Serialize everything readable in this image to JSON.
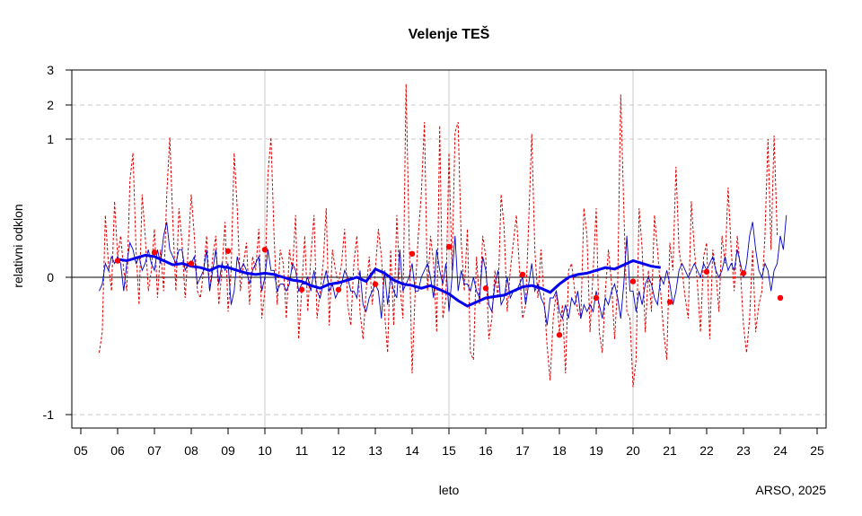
{
  "chart_data": {
    "type": "line",
    "title": "Velenje TEŠ",
    "xlabel": "leto",
    "ylabel": "relativni odklon",
    "credit": "ARSO, 2025",
    "x_ticks": [
      "05",
      "06",
      "07",
      "08",
      "09",
      "10",
      "11",
      "12",
      "13",
      "14",
      "15",
      "16",
      "17",
      "18",
      "19",
      "20",
      "21",
      "22",
      "23",
      "24",
      "25"
    ],
    "x_range": [
      2005,
      2025
    ],
    "y_ticks": [
      {
        "label": "-1",
        "value": -1
      },
      {
        "label": "0",
        "value": 0
      },
      {
        "label": "1",
        "value": 1
      },
      {
        "label": "2",
        "value": 2
      },
      {
        "label": "3",
        "value": 3
      }
    ],
    "y_scale": "asinh-like (nonlinear: 0 at centre, 1, 2, 3 compressed upward)",
    "grid": true,
    "colors": {
      "monthly": "#e00000",
      "seasonal": "#0000c8",
      "smooth": "#0000ee",
      "annual": "#ff0000",
      "grid": "#c8c8c8"
    },
    "series": [
      {
        "name": "",
        "style": "dashed red",
        "x_start": 2005.5,
        "x_step": 0.08333,
        "values": [
          -0.55,
          -0.4,
          0.45,
          0.1,
          -0.1,
          0.55,
          0.15,
          0.3,
          0.05,
          -0.1,
          0.7,
          0.9,
          0.2,
          -0.2,
          0.6,
          0.3,
          -0.1,
          0.05,
          0.35,
          -0.15,
          0.2,
          -0.1,
          0.6,
          1.05,
          0.4,
          -0.1,
          0.5,
          0.25,
          -0.15,
          0.2,
          0.6,
          0.3,
          -0.1,
          -0.15,
          0.05,
          0.3,
          -0.1,
          0.15,
          0.3,
          -0.2,
          0.05,
          0.4,
          -0.25,
          0.05,
          0.9,
          0.5,
          -0.1,
          0.1,
          0.25,
          -0.2,
          0.15,
          0.05,
          0.35,
          -0.3,
          -0.1,
          0.75,
          1.05,
          0.3,
          -0.2,
          0.2,
          0.1,
          -0.3,
          0.2,
          0.05,
          0.45,
          -0.45,
          -0.1,
          0.3,
          -0.25,
          0.15,
          0.45,
          -0.3,
          -0.1,
          0.1,
          0.5,
          -0.35,
          0.2,
          0.05,
          -0.05,
          0.1,
          0.35,
          -0.2,
          -0.35,
          0.1,
          0.3,
          -0.25,
          -0.45,
          -0.1,
          0.15,
          -0.2,
          0.05,
          0.35,
          0.15,
          -0.25,
          -0.55,
          0.2,
          -0.35,
          0.45,
          -0.05,
          -0.3,
          2.6,
          0.3,
          -0.7,
          -0.1,
          0.3,
          0.6,
          1.5,
          -0.1,
          0.3,
          0.1,
          -0.4,
          1.4,
          -0.3,
          -0.15,
          0.9,
          0.05,
          1.2,
          1.5,
          0.25,
          -0.1,
          0.35,
          -0.55,
          -0.6,
          0.15,
          -0.2,
          0.3,
          0.15,
          -0.45,
          -0.3,
          0.05,
          -0.15,
          0.6,
          0.35,
          -0.25,
          0.05,
          0.25,
          0.45,
          0.05,
          -0.3,
          -0.2,
          0.4,
          1.15,
          0.2,
          -0.15,
          0.2,
          -0.15,
          -0.5,
          -0.75,
          -0.3,
          -0.1,
          -0.4,
          -0.2,
          -0.7,
          0.05,
          0.1,
          -0.1,
          -0.25,
          -0.3,
          0.5,
          0.3,
          -0.4,
          0.05,
          0.5,
          -0.4,
          -0.55,
          -0.1,
          0.2,
          -0.05,
          -0.45,
          -0.05,
          2.3,
          0.5,
          -0.25,
          -0.3,
          -0.8,
          -0.6,
          0.5,
          0.2,
          -0.4,
          0.05,
          -0.25,
          0.45,
          0.2,
          -0.1,
          -0.4,
          -0.6,
          0.25,
          0.05,
          0.8,
          0.2,
          0.05,
          -0.15,
          -0.3,
          0.55,
          0.2,
          -0.05,
          -0.4,
          0.15,
          0.25,
          -0.45,
          0.2,
          0.05,
          -0.25,
          0.3,
          0.1,
          0.65,
          0.2,
          -0.1,
          0.3,
          0.05,
          -0.35,
          -0.55,
          -0.3,
          0.2,
          -0.4,
          -0.2,
          -0.1,
          0.3,
          1.0,
          0.2,
          1.1,
          0.3
        ]
      },
      {
        "name": "",
        "style": "thin blue",
        "x_start": 2005.5,
        "x_step": 0.08333,
        "values": [
          -0.1,
          -0.05,
          0.1,
          0.05,
          0.15,
          0.1,
          0.15,
          0.1,
          -0.1,
          0.1,
          0.25,
          0.2,
          0.1,
          0.15,
          0.05,
          0.1,
          0.2,
          0.1,
          0.05,
          0.2,
          0.1,
          0.3,
          0.4,
          0.2,
          0.15,
          0.1,
          0.2,
          0.2,
          0.05,
          0.1,
          0.1,
          0.15,
          -0.05,
          0.0,
          0.05,
          0.2,
          -0.1,
          0.05,
          0.2,
          -0.05,
          0.1,
          0.05,
          0.1,
          -0.2,
          -0.1,
          0.15,
          0.05,
          0.1,
          0.05,
          -0.05,
          0.05,
          0.1,
          0.15,
          -0.1,
          0.0,
          0.2,
          0.05,
          0.05,
          -0.1,
          -0.05,
          -0.05,
          -0.1,
          -0.05,
          0.1,
          0.05,
          -0.1,
          -0.05,
          -0.05,
          0.0,
          -0.1,
          0.05,
          -0.1,
          -0.15,
          -0.05,
          0.05,
          -0.1,
          -0.05,
          -0.15,
          -0.1,
          -0.05,
          0.05,
          0.0,
          -0.1,
          -0.1,
          -0.15,
          0.05,
          -0.2,
          -0.25,
          -0.15,
          -0.1,
          -0.05,
          -0.1,
          -0.3,
          0.05,
          -0.2,
          0.0,
          -0.1,
          -0.15,
          0.2,
          -0.1,
          -0.05,
          0.0,
          0.1,
          -0.1,
          -0.1,
          0.0,
          0.05,
          0.1,
          0.0,
          -0.15,
          0.2,
          0.05,
          -0.05,
          0.1,
          -0.25,
          0.0,
          0.3,
          -0.1,
          0.05,
          -0.05,
          -0.05,
          -0.1,
          0.0,
          -0.1,
          -0.15,
          0.15,
          0.05,
          -0.2,
          -0.25,
          -0.05,
          0.05,
          -0.2,
          -0.15,
          0.0,
          -0.15,
          -0.1,
          -0.1,
          -0.05,
          0.0,
          -0.2,
          -0.05,
          0.1,
          -0.1,
          -0.05,
          -0.15,
          -0.2,
          -0.35,
          -0.15,
          -0.15,
          -0.1,
          -0.25,
          -0.3,
          -0.2,
          -0.3,
          -0.15,
          -0.2,
          -0.1,
          -0.3,
          -0.2,
          -0.25,
          -0.2,
          -0.25,
          -0.1,
          -0.2,
          -0.3,
          -0.15,
          -0.2,
          -0.1,
          -0.05,
          -0.15,
          -0.3,
          -0.05,
          0.3,
          -0.1,
          -0.1,
          -0.25,
          -0.1,
          -0.2,
          -0.05,
          0.0,
          -0.05,
          -0.15,
          -0.2,
          0.0,
          -0.05,
          0.05,
          -0.05,
          -0.2,
          -0.1,
          0.05,
          0.1,
          0.05,
          0.0,
          0.05,
          0.1,
          0.05,
          0.0,
          0.1,
          0.05,
          0.1,
          0.15,
          0.05,
          0.0,
          0.05,
          0.15,
          0.05,
          0.1,
          0.05,
          0.2,
          0.1,
          0.0,
          0.1,
          0.3,
          0.4,
          0.2,
          0.05,
          0.0,
          0.1,
          0.05,
          -0.1,
          0.05,
          0.1,
          0.3,
          0.2,
          0.45
        ]
      },
      {
        "name": "",
        "style": "thick blue",
        "x_start": 2006.0,
        "x_step": 0.25,
        "values": [
          0.13,
          0.12,
          0.14,
          0.16,
          0.15,
          0.12,
          0.09,
          0.1,
          0.08,
          0.07,
          0.05,
          0.08,
          0.07,
          0.05,
          0.03,
          0.02,
          0.03,
          0.02,
          0.0,
          -0.02,
          -0.03,
          -0.06,
          -0.08,
          -0.05,
          -0.04,
          -0.02,
          0.0,
          -0.03,
          0.06,
          0.03,
          -0.02,
          -0.05,
          -0.06,
          -0.08,
          -0.06,
          -0.09,
          -0.12,
          -0.17,
          -0.21,
          -0.18,
          -0.15,
          -0.14,
          -0.13,
          -0.1,
          -0.07,
          -0.06,
          -0.08,
          -0.11,
          -0.05,
          0.0,
          0.02,
          0.03,
          0.05,
          0.07,
          0.06,
          0.09,
          0.12,
          0.1,
          0.08,
          0.07
        ]
      },
      {
        "name": "",
        "style": "red dots",
        "x": [
          2006.0,
          2007.0,
          2008.0,
          2009.0,
          2010.0,
          2011.0,
          2012.0,
          2013.0,
          2014.0,
          2015.0,
          2016.0,
          2017.0,
          2018.0,
          2019.0,
          2020.0,
          2021.0,
          2022.0,
          2023.0,
          2024.0
        ],
        "values": [
          0.12,
          0.18,
          0.1,
          0.19,
          0.2,
          -0.09,
          -0.09,
          -0.05,
          0.17,
          0.22,
          -0.08,
          0.02,
          -0.42,
          -0.15,
          -0.03,
          -0.18,
          0.04,
          0.03,
          -0.15
        ]
      }
    ]
  }
}
